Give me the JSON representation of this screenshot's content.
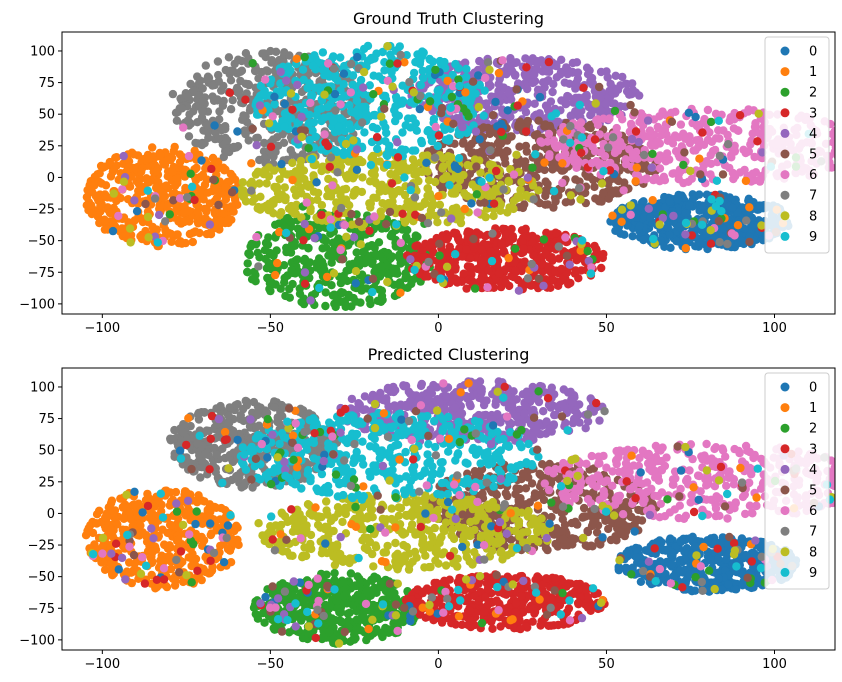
{
  "colors": {
    "0": "#1f77b4",
    "1": "#ff7f0e",
    "2": "#2ca02c",
    "3": "#d62728",
    "4": "#9467bd",
    "5": "#8c564b",
    "6": "#e377c2",
    "7": "#7f7f7f",
    "8": "#bcbd22",
    "9": "#17becf"
  },
  "chart_data": [
    {
      "type": "scatter",
      "title": "Ground Truth Clustering",
      "xlim": [
        -112,
        118
      ],
      "ylim": [
        -108,
        115
      ],
      "xticks": [
        -100,
        -50,
        0,
        50,
        100
      ],
      "yticks": [
        -100,
        -75,
        -50,
        -25,
        0,
        25,
        50,
        75,
        100
      ],
      "legend_position": "top-right",
      "legend": [
        "0",
        "1",
        "2",
        "3",
        "4",
        "5",
        "6",
        "7",
        "8",
        "9"
      ],
      "clusters": [
        {
          "label": "0",
          "center": [
            78,
            -35
          ],
          "radius": [
            27,
            22
          ]
        },
        {
          "label": "1",
          "center": [
            -82,
            -15
          ],
          "radius": [
            23,
            40
          ]
        },
        {
          "label": "2",
          "center": [
            -30,
            -65
          ],
          "radius": [
            28,
            38
          ]
        },
        {
          "label": "3",
          "center": [
            20,
            -65
          ],
          "radius": [
            30,
            25
          ]
        },
        {
          "label": "4",
          "center": [
            25,
            65
          ],
          "radius": [
            35,
            30
          ]
        },
        {
          "label": "5",
          "center": [
            30,
            10
          ],
          "radius": [
            35,
            35
          ]
        },
        {
          "label": "6",
          "center": [
            80,
            25
          ],
          "radius": [
            50,
            30
          ]
        },
        {
          "label": "7",
          "center": [
            -50,
            55
          ],
          "radius": [
            30,
            45
          ]
        },
        {
          "label": "8",
          "center": [
            -15,
            -10
          ],
          "radius": [
            45,
            30
          ]
        },
        {
          "label": "9",
          "center": [
            -20,
            60
          ],
          "radius": [
            35,
            45
          ]
        }
      ]
    },
    {
      "type": "scatter",
      "title": "Predicted Clustering",
      "xlim": [
        -112,
        118
      ],
      "ylim": [
        -108,
        115
      ],
      "xticks": [
        -100,
        -50,
        0,
        50,
        100
      ],
      "yticks": [
        -100,
        -75,
        -50,
        -25,
        0,
        25,
        50,
        75,
        100
      ],
      "legend_position": "top-right",
      "legend": [
        "0",
        "1",
        "2",
        "3",
        "4",
        "5",
        "6",
        "7",
        "8",
        "9"
      ],
      "clusters": [
        {
          "label": "0",
          "center": [
            80,
            -40
          ],
          "radius": [
            27,
            22
          ]
        },
        {
          "label": "1",
          "center": [
            -82,
            -20
          ],
          "radius": [
            23,
            40
          ]
        },
        {
          "label": "2",
          "center": [
            -30,
            -75
          ],
          "radius": [
            25,
            28
          ]
        },
        {
          "label": "3",
          "center": [
            20,
            -70
          ],
          "radius": [
            30,
            22
          ]
        },
        {
          "label": "4",
          "center": [
            10,
            80
          ],
          "radius": [
            40,
            25
          ]
        },
        {
          "label": "5",
          "center": [
            30,
            5
          ],
          "radius": [
            35,
            35
          ]
        },
        {
          "label": "6",
          "center": [
            80,
            25
          ],
          "radius": [
            50,
            30
          ]
        },
        {
          "label": "7",
          "center": [
            -55,
            55
          ],
          "radius": [
            25,
            35
          ]
        },
        {
          "label": "8",
          "center": [
            -10,
            -15
          ],
          "radius": [
            45,
            30
          ]
        },
        {
          "label": "9",
          "center": [
            -15,
            45
          ],
          "radius": [
            45,
            35
          ]
        }
      ]
    }
  ]
}
